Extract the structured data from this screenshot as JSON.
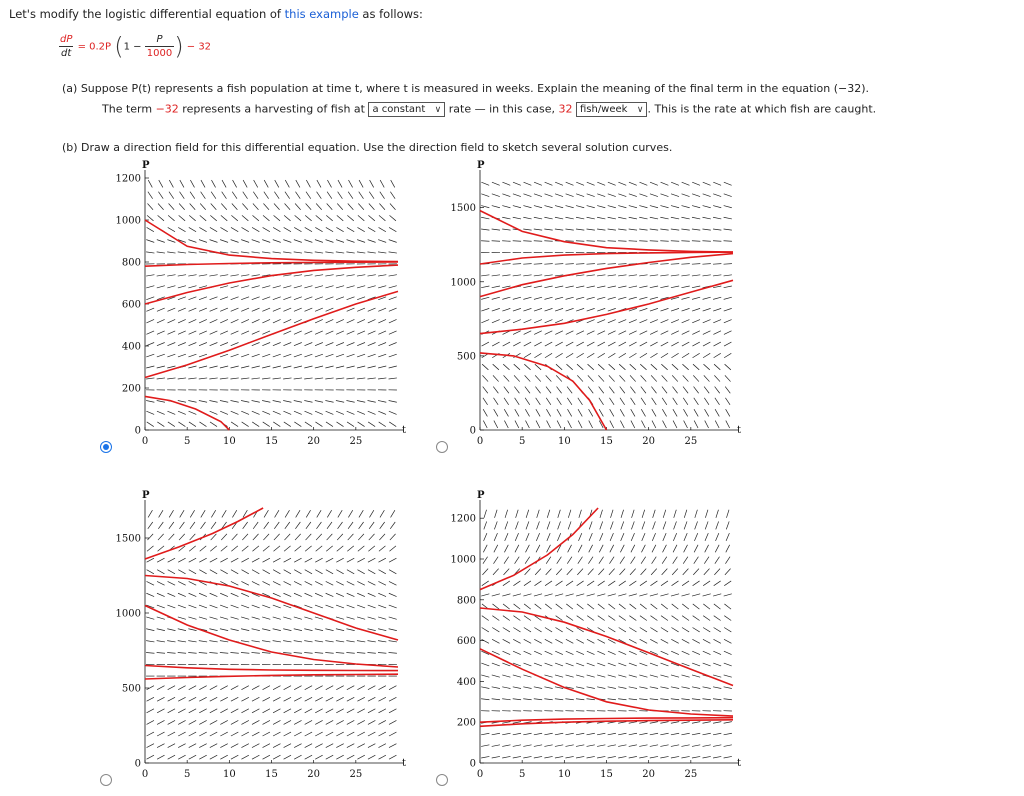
{
  "intro": {
    "prefix": "Let's modify the logistic differential equation of ",
    "link": "this example",
    "suffix": " as follows:"
  },
  "equation": {
    "dP": "dP",
    "dt": "dt",
    "eq_prefix": "= 0.2P",
    "one_minus": "1 −",
    "P": "P",
    "denom": "1000",
    "harvest": "− 32"
  },
  "part_a": {
    "question": "(a) Suppose P(t) represents a fish population at time t, where t is measured in weeks. Explain the meaning of the final term in the equation (−32).",
    "ans_prefix": "The term ",
    "ans_term": "−32",
    "ans_mid": " represents a harvesting of fish at ",
    "dropdown1": "a constant",
    "ans_mid2": " rate — in this case, ",
    "ans_value": "32",
    "dropdown2": "fish/week",
    "ans_suffix": ". This is the rate at which fish are caught."
  },
  "part_b": {
    "question": "(b) Draw a direction field for this differential equation. Use the direction field to sketch several solution curves."
  },
  "selected_option": 0,
  "colors": {
    "curve": "#e01b1b",
    "slope": "#222222",
    "radio_selected": "#1a73e8",
    "link": "#1a5fd6"
  },
  "chart_data": [
    {
      "type": "line",
      "option": 1,
      "xlabel": "t",
      "ylabel": "P",
      "xlim": [
        0,
        30
      ],
      "ylim": [
        0,
        1200
      ],
      "xticks": [
        "0",
        "5",
        "10",
        "15",
        "20",
        "25"
      ],
      "yticks": [
        "0",
        "200",
        "400",
        "600",
        "800",
        "1000",
        "1200"
      ],
      "field": "logistic_harvest_down",
      "eq_lines": [
        800
      ],
      "series": [
        {
          "x": [
            0,
            5,
            10,
            15,
            20,
            25,
            30
          ],
          "y": [
            1000,
            875,
            833,
            816,
            808,
            804,
            802
          ]
        },
        {
          "x": [
            0,
            5,
            10,
            15,
            20,
            25,
            30
          ],
          "y": [
            780,
            788,
            793,
            796,
            798,
            799,
            800
          ]
        },
        {
          "x": [
            0,
            5,
            10,
            15,
            20,
            25,
            30
          ],
          "y": [
            600,
            655,
            700,
            735,
            760,
            775,
            785
          ]
        },
        {
          "x": [
            0,
            5,
            10,
            15,
            20,
            25,
            30
          ],
          "y": [
            250,
            310,
            380,
            455,
            530,
            600,
            660
          ]
        },
        {
          "x": [
            0,
            3,
            6,
            9,
            10
          ],
          "y": [
            160,
            140,
            100,
            40,
            0
          ]
        }
      ]
    },
    {
      "type": "line",
      "option": 2,
      "xlabel": "t",
      "ylabel": "P",
      "xlim": [
        0,
        30
      ],
      "ylim": [
        0,
        1700
      ],
      "xticks": [
        "0",
        "5",
        "10",
        "15",
        "20",
        "25"
      ],
      "yticks": [
        "0",
        "500",
        "1000",
        "1500"
      ],
      "field": "rising",
      "eq_lines": [
        1200
      ],
      "series": [
        {
          "x": [
            0,
            5,
            10,
            15,
            20,
            25,
            30
          ],
          "y": [
            1480,
            1340,
            1270,
            1230,
            1215,
            1205,
            1200
          ]
        },
        {
          "x": [
            0,
            5,
            10,
            15,
            20,
            25,
            30
          ],
          "y": [
            1120,
            1160,
            1180,
            1190,
            1195,
            1198,
            1200
          ]
        },
        {
          "x": [
            0,
            5,
            10,
            15,
            20,
            25,
            30
          ],
          "y": [
            900,
            980,
            1040,
            1090,
            1130,
            1165,
            1190
          ]
        },
        {
          "x": [
            0,
            5,
            10,
            15,
            20,
            25,
            30
          ],
          "y": [
            650,
            680,
            720,
            780,
            850,
            930,
            1010
          ]
        },
        {
          "x": [
            0,
            4,
            8,
            11,
            13,
            15
          ],
          "y": [
            520,
            500,
            430,
            330,
            200,
            0
          ]
        }
      ]
    },
    {
      "type": "line",
      "option": 3,
      "xlabel": "t",
      "ylabel": "P",
      "xlim": [
        0,
        30
      ],
      "ylim": [
        0,
        1700
      ],
      "xticks": [
        "0",
        "5",
        "10",
        "15",
        "20",
        "25"
      ],
      "yticks": [
        "0",
        "500",
        "1000",
        "1500"
      ],
      "field": "falling_to_zero_up",
      "eq_lines": [
        550,
        620
      ],
      "series": [
        {
          "x": [
            0,
            4,
            8,
            11,
            14
          ],
          "y": [
            1360,
            1440,
            1530,
            1610,
            1700
          ]
        },
        {
          "x": [
            0,
            5,
            10,
            15,
            20,
            25,
            30
          ],
          "y": [
            1250,
            1230,
            1180,
            1100,
            1000,
            900,
            820
          ]
        },
        {
          "x": [
            0,
            5,
            10,
            15,
            20,
            25,
            30
          ],
          "y": [
            1050,
            920,
            820,
            740,
            690,
            660,
            640
          ]
        },
        {
          "x": [
            0,
            5,
            10,
            15,
            20,
            25,
            30
          ],
          "y": [
            650,
            635,
            625,
            620,
            618,
            617,
            616
          ]
        },
        {
          "x": [
            0,
            5,
            10,
            15,
            20,
            25,
            30
          ],
          "y": [
            560,
            570,
            578,
            584,
            588,
            590,
            592
          ]
        }
      ]
    },
    {
      "type": "line",
      "option": 4,
      "xlabel": "t",
      "ylabel": "P",
      "xlim": [
        0,
        30
      ],
      "ylim": [
        0,
        1250
      ],
      "xticks": [
        "0",
        "5",
        "10",
        "15",
        "20",
        "25"
      ],
      "yticks": [
        "0",
        "200",
        "400",
        "600",
        "800",
        "1000",
        "1200"
      ],
      "field": "upper_unstable",
      "eq_lines": [
        200
      ],
      "series": [
        {
          "x": [
            0,
            4,
            8,
            11,
            14
          ],
          "y": [
            850,
            920,
            1020,
            1120,
            1250
          ]
        },
        {
          "x": [
            0,
            5,
            10,
            15,
            20,
            25,
            30
          ],
          "y": [
            760,
            740,
            690,
            620,
            540,
            460,
            380
          ]
        },
        {
          "x": [
            0,
            5,
            10,
            15,
            20,
            25,
            30
          ],
          "y": [
            560,
            460,
            370,
            300,
            260,
            240,
            230
          ]
        },
        {
          "x": [
            0,
            5,
            10,
            15,
            20,
            25,
            30
          ],
          "y": [
            200,
            210,
            215,
            218,
            220,
            221,
            222
          ]
        },
        {
          "x": [
            0,
            5,
            10,
            15,
            20,
            25,
            30
          ],
          "y": [
            180,
            192,
            200,
            205,
            208,
            210,
            212
          ]
        }
      ]
    }
  ]
}
